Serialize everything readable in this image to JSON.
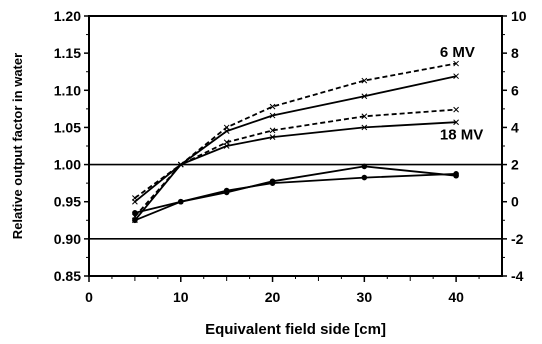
{
  "chart_data": {
    "type": "line",
    "title": "",
    "xlabel": "Equivalent field side [cm]",
    "ylabel": "Relative output factor in water",
    "xlim": [
      0,
      45
    ],
    "xticks": [
      0,
      10,
      20,
      30,
      40
    ],
    "xtick_labels": [
      "0",
      "10",
      "20",
      "30",
      "40"
    ],
    "ylim": [
      0.85,
      1.2
    ],
    "yticks": [
      0.85,
      0.9,
      0.95,
      1.0,
      1.05,
      1.1,
      1.15,
      1.2
    ],
    "ytick_labels": [
      "0.85",
      "0.90",
      "0.95",
      "1.00",
      "1.05",
      "1.10",
      "1.15",
      "1.20"
    ],
    "y2lim": [
      -4,
      10
    ],
    "y2ticks": [
      -4,
      -2,
      0,
      2,
      4,
      6,
      8,
      10
    ],
    "y2tick_labels": [
      "-4",
      "-2",
      "0",
      "2",
      "4",
      "6",
      "8",
      "10"
    ],
    "hlines": [
      1.0,
      0.9
    ],
    "grid": false,
    "series": [
      {
        "axis": "left",
        "style": "dashed",
        "marker": "x",
        "x": [
          5,
          10,
          15,
          20,
          30,
          40
        ],
        "y": [
          0.955,
          1.0,
          1.05,
          1.078,
          1.113,
          1.136
        ]
      },
      {
        "axis": "left",
        "style": "solid",
        "marker": "x",
        "x": [
          5,
          10,
          15,
          20,
          30,
          40
        ],
        "y": [
          0.95,
          1.0,
          1.045,
          1.066,
          1.092,
          1.119
        ]
      },
      {
        "axis": "left",
        "style": "dashed",
        "marker": "x",
        "x": [
          5,
          10,
          15,
          20,
          30,
          40
        ],
        "y": [
          0.93,
          1.0,
          1.03,
          1.046,
          1.065,
          1.074
        ]
      },
      {
        "axis": "left",
        "style": "solid",
        "marker": "x",
        "x": [
          5,
          10,
          15,
          20,
          30,
          40
        ],
        "y": [
          0.925,
          1.0,
          1.025,
          1.037,
          1.05,
          1.057
        ]
      },
      {
        "axis": "right",
        "style": "solid",
        "marker": "dot",
        "x": [
          5,
          10,
          15,
          20,
          30,
          40
        ],
        "y": [
          -1.0,
          0.0,
          0.6,
          1.0,
          1.3,
          1.5
        ]
      },
      {
        "axis": "right",
        "style": "solid",
        "marker": "dot",
        "x": [
          5,
          10,
          15,
          20,
          30,
          40
        ],
        "y": [
          -0.6,
          0.0,
          0.5,
          1.1,
          1.9,
          1.4
        ]
      }
    ],
    "annotations": [
      {
        "text": "6 MV",
        "x": 41.5,
        "y": 1.137
      },
      {
        "text": "18 MV",
        "x": 41.5,
        "y": 1.026
      }
    ]
  }
}
